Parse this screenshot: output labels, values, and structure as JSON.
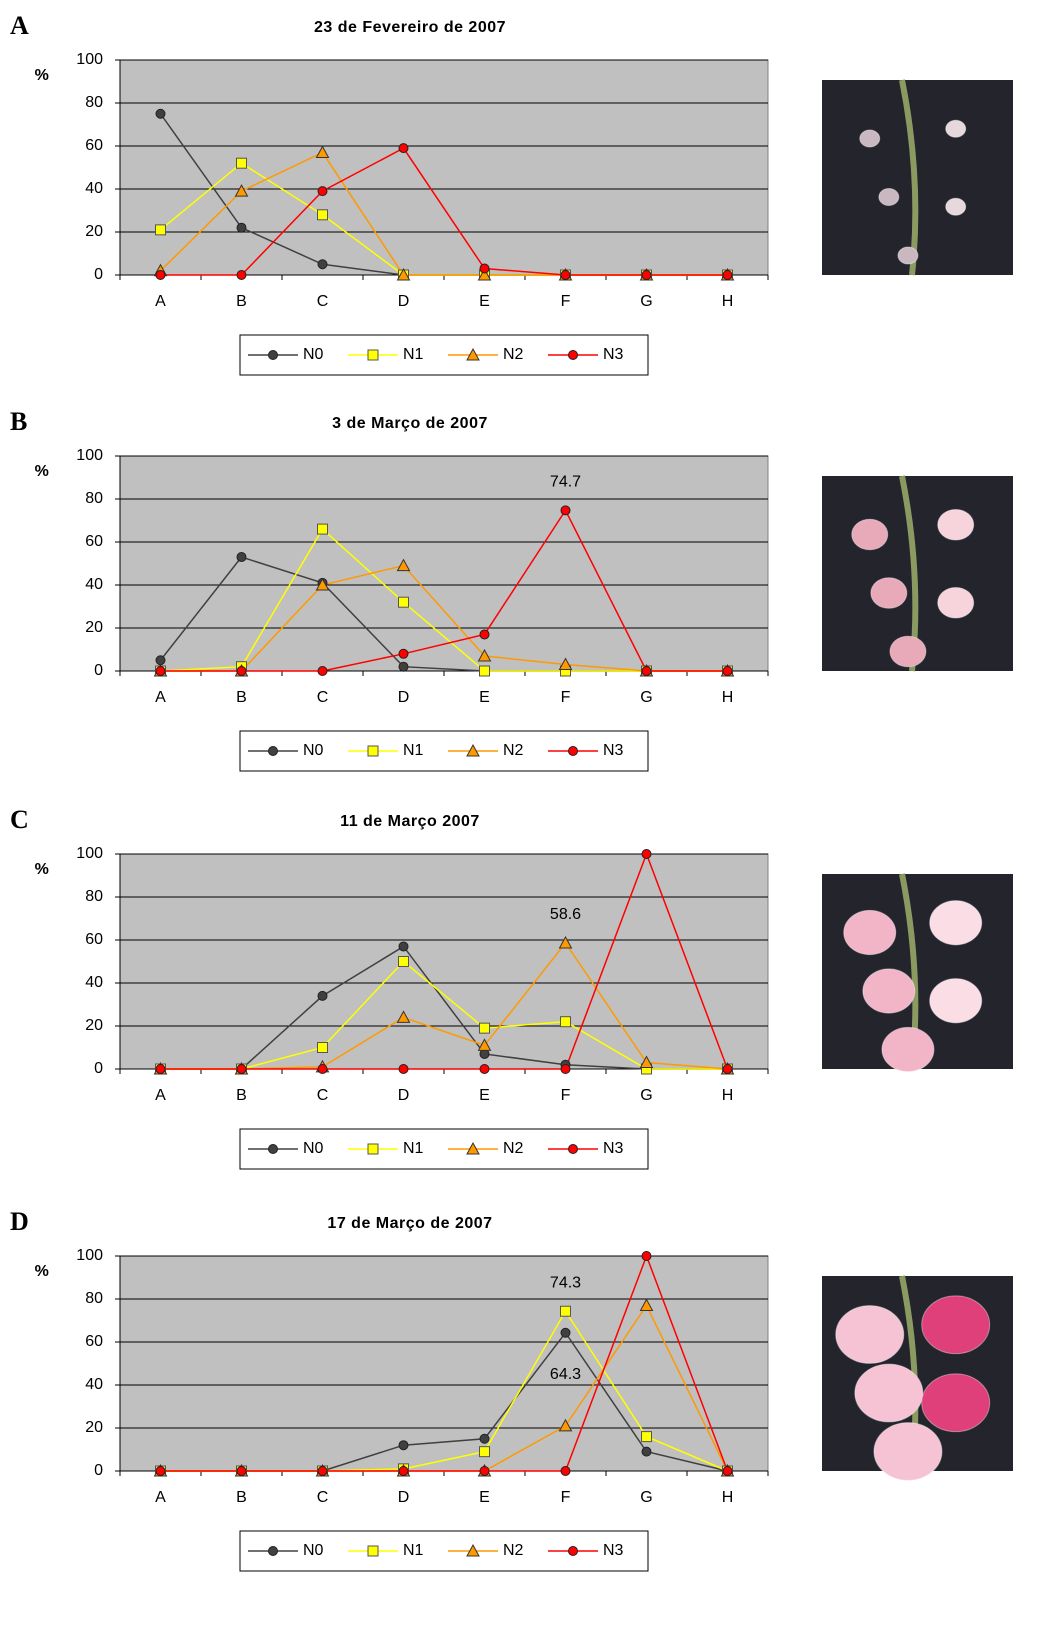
{
  "chart_data": [
    {
      "type": "line",
      "panel": "A",
      "title": "23 de Fevereiro de 2007",
      "ylabel": "%",
      "categories": [
        "A",
        "B",
        "C",
        "D",
        "E",
        "F",
        "G",
        "H"
      ],
      "ylim": [
        0,
        100
      ],
      "yticks": [
        0,
        20,
        40,
        60,
        80,
        100
      ],
      "grid": true,
      "legend": "bottom",
      "series": [
        {
          "name": "N0",
          "color": "#404040",
          "values": [
            75,
            22,
            5,
            0,
            0,
            0,
            0,
            0
          ]
        },
        {
          "name": "N1",
          "color": "#ffff00",
          "values": [
            21,
            52,
            28,
            0,
            0,
            0,
            0,
            0
          ]
        },
        {
          "name": "N2",
          "color": "#ff9900",
          "values": [
            2,
            39,
            57,
            0,
            0,
            0,
            0,
            0
          ]
        },
        {
          "name": "N3",
          "color": "#ff0000",
          "values": [
            0,
            0,
            39,
            59,
            3,
            0,
            0,
            0
          ]
        }
      ]
    },
    {
      "type": "line",
      "panel": "B",
      "title": "3 de Março de 2007",
      "ylabel": "%",
      "categories": [
        "A",
        "B",
        "C",
        "D",
        "E",
        "F",
        "G",
        "H"
      ],
      "ylim": [
        0,
        100
      ],
      "yticks": [
        0,
        20,
        40,
        60,
        80,
        100
      ],
      "grid": true,
      "legend": "bottom",
      "series": [
        {
          "name": "N0",
          "color": "#404040",
          "values": [
            5,
            53,
            41,
            2,
            0,
            0,
            0,
            0
          ]
        },
        {
          "name": "N1",
          "color": "#ffff00",
          "values": [
            0,
            2,
            66,
            32,
            0,
            0,
            0,
            0
          ]
        },
        {
          "name": "N2",
          "color": "#ff9900",
          "values": [
            0,
            0,
            40,
            49,
            7,
            3,
            0,
            0
          ]
        },
        {
          "name": "N3",
          "color": "#ff0000",
          "values": [
            0,
            0,
            0,
            8,
            17,
            74.7,
            0,
            0
          ],
          "value_labels": [
            null,
            null,
            null,
            null,
            null,
            "74.7",
            null,
            null
          ]
        }
      ]
    },
    {
      "type": "line",
      "panel": "C",
      "title": "11 de Março 2007",
      "ylabel": "%",
      "categories": [
        "A",
        "B",
        "C",
        "D",
        "E",
        "F",
        "G",
        "H"
      ],
      "ylim": [
        0,
        100
      ],
      "yticks": [
        0,
        20,
        40,
        60,
        80,
        100
      ],
      "grid": true,
      "legend": "bottom",
      "series": [
        {
          "name": "N0",
          "color": "#404040",
          "values": [
            0,
            0,
            34,
            57,
            7,
            2,
            0,
            0
          ]
        },
        {
          "name": "N1",
          "color": "#ffff00",
          "values": [
            0,
            0,
            10,
            50,
            19,
            22,
            0,
            0
          ]
        },
        {
          "name": "N2",
          "color": "#ff9900",
          "values": [
            0,
            0,
            1,
            24,
            11,
            58.6,
            3,
            0
          ],
          "value_labels": [
            null,
            null,
            null,
            null,
            null,
            "58.6",
            null,
            null
          ]
        },
        {
          "name": "N3",
          "color": "#ff0000",
          "values": [
            0,
            0,
            0,
            0,
            0,
            0,
            100,
            0
          ]
        }
      ]
    },
    {
      "type": "line",
      "panel": "D",
      "title": "17 de Março de 2007",
      "ylabel": "%",
      "categories": [
        "A",
        "B",
        "C",
        "D",
        "E",
        "F",
        "G",
        "H"
      ],
      "ylim": [
        0,
        100
      ],
      "yticks": [
        0,
        20,
        40,
        60,
        80,
        100
      ],
      "grid": true,
      "legend": "bottom",
      "series": [
        {
          "name": "N0",
          "color": "#404040",
          "values": [
            0,
            0,
            0,
            12,
            15,
            64.3,
            9,
            0
          ],
          "value_labels": [
            null,
            null,
            null,
            null,
            null,
            "64.3",
            null,
            null
          ]
        },
        {
          "name": "N1",
          "color": "#ffff00",
          "values": [
            0,
            0,
            0,
            1,
            9,
            74.3,
            16,
            0
          ],
          "value_labels": [
            null,
            null,
            null,
            null,
            null,
            "74.3",
            null,
            null
          ]
        },
        {
          "name": "N2",
          "color": "#ff9900",
          "values": [
            0,
            0,
            0,
            0,
            0,
            21,
            77,
            0
          ]
        },
        {
          "name": "N3",
          "color": "#ff0000",
          "values": [
            0,
            0,
            0,
            0,
            0,
            0,
            100,
            0
          ]
        }
      ]
    }
  ]
}
